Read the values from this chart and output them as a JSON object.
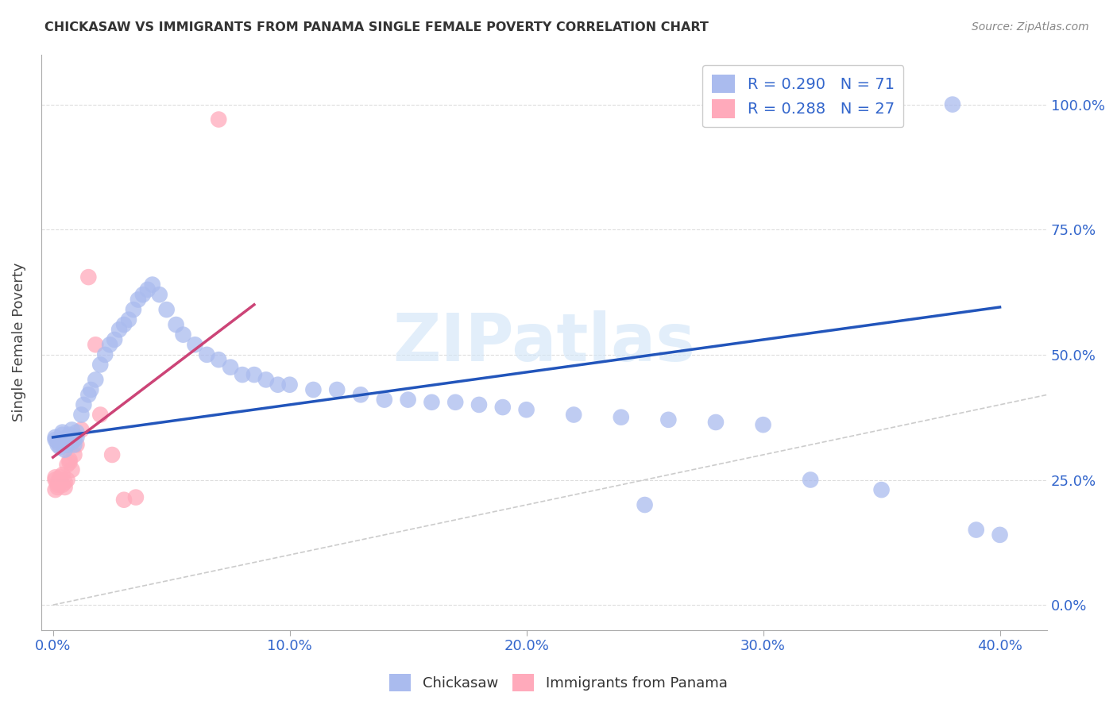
{
  "title": "CHICKASAW VS IMMIGRANTS FROM PANAMA SINGLE FEMALE POVERTY CORRELATION CHART",
  "source": "Source: ZipAtlas.com",
  "xlabel_ticks": [
    "0.0%",
    "10.0%",
    "20.0%",
    "30.0%",
    "40.0%"
  ],
  "xlabel_tick_vals": [
    0.0,
    0.1,
    0.2,
    0.3,
    0.4
  ],
  "ylabel": "Single Female Poverty",
  "ylabel_ticks": [
    "0.0%",
    "25.0%",
    "50.0%",
    "75.0%",
    "100.0%"
  ],
  "ylabel_tick_vals": [
    0.0,
    0.25,
    0.5,
    0.75,
    1.0
  ],
  "xlim": [
    -0.005,
    0.42
  ],
  "ylim": [
    -0.05,
    1.1
  ],
  "legend1_label": "R = 0.290   N = 71",
  "legend2_label": "R = 0.288   N = 27",
  "legend_color": "#3366cc",
  "chickasaw_color": "#aabbee",
  "panama_color": "#ffaabb",
  "trendline_blue_color": "#2255bb",
  "trendline_pink_color": "#cc4477",
  "diagonal_color": "#cccccc",
  "watermark": "ZIPatlas",
  "blue_trend_x0": 0.0,
  "blue_trend_y0": 0.335,
  "blue_trend_x1": 0.4,
  "blue_trend_y1": 0.595,
  "pink_trend_x0": 0.0,
  "pink_trend_y0": 0.295,
  "pink_trend_x1": 0.085,
  "pink_trend_y1": 0.6,
  "chick_x": [
    0.001,
    0.001,
    0.002,
    0.002,
    0.003,
    0.003,
    0.004,
    0.004,
    0.005,
    0.005,
    0.006,
    0.006,
    0.007,
    0.007,
    0.008,
    0.008,
    0.009,
    0.009,
    0.01,
    0.01,
    0.012,
    0.013,
    0.015,
    0.016,
    0.018,
    0.02,
    0.022,
    0.024,
    0.026,
    0.028,
    0.03,
    0.032,
    0.034,
    0.036,
    0.038,
    0.04,
    0.042,
    0.045,
    0.048,
    0.052,
    0.055,
    0.06,
    0.065,
    0.07,
    0.075,
    0.08,
    0.085,
    0.09,
    0.095,
    0.1,
    0.11,
    0.12,
    0.13,
    0.14,
    0.15,
    0.16,
    0.17,
    0.18,
    0.19,
    0.2,
    0.22,
    0.24,
    0.26,
    0.28,
    0.3,
    0.25,
    0.32,
    0.35,
    0.39,
    0.4,
    0.38
  ],
  "chick_y": [
    0.335,
    0.33,
    0.325,
    0.32,
    0.33,
    0.315,
    0.34,
    0.345,
    0.325,
    0.31,
    0.335,
    0.32,
    0.34,
    0.33,
    0.35,
    0.325,
    0.33,
    0.32,
    0.335,
    0.345,
    0.38,
    0.4,
    0.42,
    0.43,
    0.45,
    0.48,
    0.5,
    0.52,
    0.53,
    0.55,
    0.56,
    0.57,
    0.59,
    0.61,
    0.62,
    0.63,
    0.64,
    0.62,
    0.59,
    0.56,
    0.54,
    0.52,
    0.5,
    0.49,
    0.475,
    0.46,
    0.46,
    0.45,
    0.44,
    0.44,
    0.43,
    0.43,
    0.42,
    0.41,
    0.41,
    0.405,
    0.405,
    0.4,
    0.395,
    0.39,
    0.38,
    0.375,
    0.37,
    0.365,
    0.36,
    0.2,
    0.25,
    0.23,
    0.15,
    0.14,
    1.0
  ],
  "pan_x": [
    0.001,
    0.001,
    0.001,
    0.002,
    0.002,
    0.002,
    0.003,
    0.003,
    0.004,
    0.004,
    0.005,
    0.005,
    0.006,
    0.006,
    0.007,
    0.007,
    0.008,
    0.009,
    0.01,
    0.012,
    0.015,
    0.018,
    0.02,
    0.025,
    0.03,
    0.035,
    0.07
  ],
  "pan_y": [
    0.25,
    0.255,
    0.23,
    0.24,
    0.245,
    0.235,
    0.25,
    0.255,
    0.26,
    0.24,
    0.245,
    0.235,
    0.25,
    0.28,
    0.285,
    0.29,
    0.27,
    0.3,
    0.32,
    0.35,
    0.655,
    0.52,
    0.38,
    0.3,
    0.21,
    0.215,
    0.97
  ]
}
